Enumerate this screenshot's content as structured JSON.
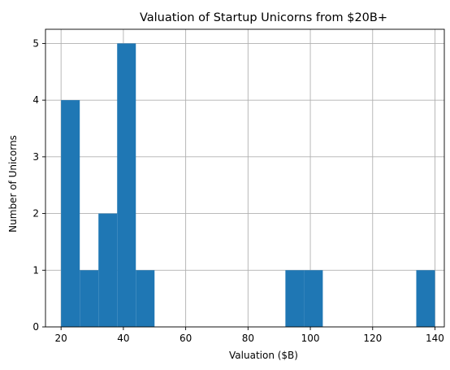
{
  "chart_data": {
    "type": "bar",
    "title": "Valuation of Startup Unicorns from $20B+",
    "xlabel": "Valuation ($B)",
    "ylabel": "Number of Unicorns",
    "xlim": [
      15,
      143
    ],
    "ylim": [
      0,
      5.25
    ],
    "xticks": [
      20,
      40,
      60,
      80,
      100,
      120,
      140
    ],
    "yticks": [
      0,
      1,
      2,
      3,
      4,
      5
    ],
    "grid": true,
    "color": "#1f77b4",
    "bins": [
      {
        "x0": 20,
        "x1": 26,
        "count": 4
      },
      {
        "x0": 26,
        "x1": 32,
        "count": 1
      },
      {
        "x0": 32,
        "x1": 38,
        "count": 2
      },
      {
        "x0": 38,
        "x1": 44,
        "count": 5
      },
      {
        "x0": 44,
        "x1": 50,
        "count": 1
      },
      {
        "x0": 50,
        "x1": 56,
        "count": 0
      },
      {
        "x0": 56,
        "x1": 62,
        "count": 0
      },
      {
        "x0": 62,
        "x1": 68,
        "count": 0
      },
      {
        "x0": 68,
        "x1": 74,
        "count": 0
      },
      {
        "x0": 74,
        "x1": 80,
        "count": 0
      },
      {
        "x0": 80,
        "x1": 86,
        "count": 0
      },
      {
        "x0": 86,
        "x1": 92,
        "count": 0
      },
      {
        "x0": 92,
        "x1": 98,
        "count": 1
      },
      {
        "x0": 98,
        "x1": 104,
        "count": 1
      },
      {
        "x0": 104,
        "x1": 110,
        "count": 0
      },
      {
        "x0": 110,
        "x1": 116,
        "count": 0
      },
      {
        "x0": 116,
        "x1": 122,
        "count": 0
      },
      {
        "x0": 122,
        "x1": 128,
        "count": 0
      },
      {
        "x0": 128,
        "x1": 134,
        "count": 0
      },
      {
        "x0": 134,
        "x1": 140,
        "count": 1
      }
    ]
  }
}
